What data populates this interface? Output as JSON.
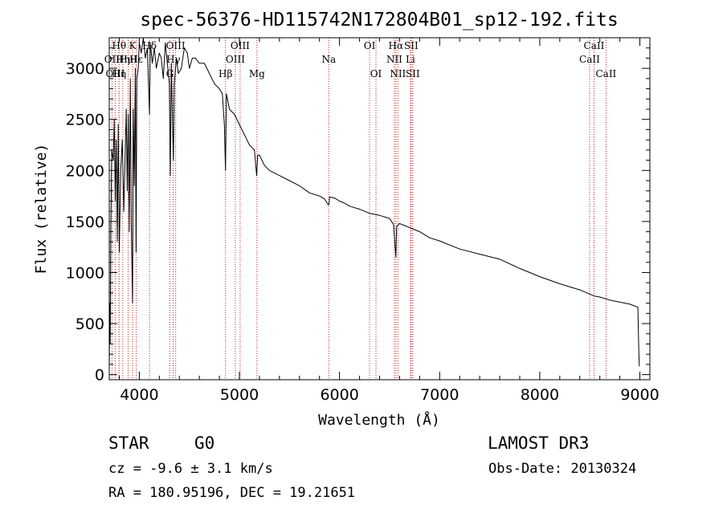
{
  "chart_data": {
    "type": "line",
    "title": "spec-56376-HD115742N172804B01_sp12-192.fits",
    "xlabel": "Wavelength (Å)",
    "ylabel": "Flux (relative)",
    "xlim": [
      3700,
      9100
    ],
    "ylim": [
      -50,
      3300
    ],
    "xticks": [
      4000,
      5000,
      6000,
      7000,
      8000,
      9000
    ],
    "yticks": [
      0,
      500,
      1000,
      1500,
      2000,
      2500,
      3000
    ],
    "xticklabels": [
      "4000",
      "5000",
      "6000",
      "7000",
      "8000",
      "9000"
    ],
    "yticklabels": [
      "0",
      "500",
      "1000",
      "1500",
      "2000",
      "2500",
      "3000"
    ],
    "spectrum": {
      "x": [
        3700,
        3705,
        3710,
        3715,
        3725,
        3740,
        3750,
        3760,
        3770,
        3780,
        3790,
        3800,
        3815,
        3830,
        3845,
        3860,
        3870,
        3880,
        3890,
        3900,
        3910,
        3920,
        3933,
        3940,
        3950,
        3960,
        3968,
        3975,
        3990,
        4000,
        4020,
        4040,
        4060,
        4080,
        4102,
        4110,
        4130,
        4150,
        4170,
        4200,
        4220,
        4240,
        4260,
        4280,
        4300,
        4310,
        4320,
        4330,
        4340,
        4350,
        4370,
        4390,
        4420,
        4450,
        4480,
        4500,
        4530,
        4560,
        4600,
        4650,
        4700,
        4750,
        4800,
        4830,
        4850,
        4861,
        4870,
        4880,
        4900,
        4950,
        5000,
        5050,
        5100,
        5150,
        5172,
        5183,
        5200,
        5250,
        5300,
        5400,
        5500,
        5600,
        5700,
        5800,
        5850,
        5890,
        5896,
        5900,
        5950,
        6000,
        6050,
        6100,
        6200,
        6300,
        6400,
        6500,
        6540,
        6563,
        6570,
        6600,
        6650,
        6700,
        6800,
        6900,
        7000,
        7200,
        7400,
        7600,
        7800,
        8000,
        8200,
        8400,
        8542,
        8600,
        8700,
        8800,
        8900,
        8980,
        8990,
        8995
      ],
      "y": [
        50,
        700,
        300,
        1400,
        2200,
        2100,
        2500,
        1700,
        2300,
        1300,
        2450,
        1200,
        2000,
        2300,
        1600,
        2200,
        2600,
        1800,
        2550,
        1400,
        2900,
        1500,
        700,
        2600,
        1850,
        3000,
        1200,
        2900,
        3000,
        3250,
        3150,
        3300,
        3100,
        3200,
        2550,
        3250,
        3050,
        3200,
        3000,
        3150,
        3100,
        2900,
        3250,
        3050,
        2850,
        1950,
        3050,
        2550,
        2100,
        2850,
        3100,
        2950,
        3000,
        3200,
        3150,
        3000,
        3100,
        3100,
        3050,
        3050,
        2950,
        2850,
        2800,
        2750,
        2450,
        2000,
        2750,
        2700,
        2600,
        2550,
        2450,
        2350,
        2250,
        2200,
        1950,
        2150,
        2150,
        2050,
        2000,
        1950,
        1900,
        1850,
        1780,
        1750,
        1720,
        1660,
        1680,
        1740,
        1730,
        1700,
        1680,
        1650,
        1620,
        1580,
        1560,
        1530,
        1470,
        1150,
        1450,
        1480,
        1460,
        1440,
        1400,
        1340,
        1310,
        1230,
        1180,
        1130,
        1040,
        960,
        890,
        830,
        770,
        760,
        730,
        710,
        690,
        660,
        200,
        80
      ]
    },
    "lines": [
      {
        "name": "Hθ",
        "wave": 3798,
        "row": 1
      },
      {
        "name": "OII",
        "wave": 3727,
        "row": 2
      },
      {
        "name": "Hη",
        "wave": 3835,
        "row": 2
      },
      {
        "name": "OIII",
        "wave": 3760,
        "row": 3
      },
      {
        "name": "Hη",
        "wave": 3798,
        "row": 3
      },
      {
        "name": "K",
        "wave": 3934,
        "row": 1
      },
      {
        "name": "HeI",
        "wave": 3889,
        "row": 2
      },
      {
        "name": "Hε",
        "wave": 3970,
        "row": 2
      },
      {
        "name": "Hδ",
        "wave": 4102,
        "row": 1
      },
      {
        "name": "OIII",
        "wave": 4363,
        "row": 1
      },
      {
        "name": "Hγ",
        "wave": 4340,
        "row": 2
      },
      {
        "name": "G",
        "wave": 4305,
        "row": 3
      },
      {
        "name": "Hβ",
        "wave": 4861,
        "row": 3
      },
      {
        "name": "OIII",
        "wave": 5007,
        "row": 1
      },
      {
        "name": "OIII",
        "wave": 4959,
        "row": 2
      },
      {
        "name": "Mg",
        "wave": 5175,
        "row": 3
      },
      {
        "name": "Na",
        "wave": 5893,
        "row": 2
      },
      {
        "name": "OI",
        "wave": 6300,
        "row": 1
      },
      {
        "name": "OI",
        "wave": 6364,
        "row": 3
      },
      {
        "name": "Hα",
        "wave": 6563,
        "row": 1
      },
      {
        "name": "SII",
        "wave": 6716,
        "row": 1
      },
      {
        "name": "NII",
        "wave": 6548,
        "row": 2
      },
      {
        "name": "Li",
        "wave": 6708,
        "row": 2
      },
      {
        "name": "NII",
        "wave": 6583,
        "row": 3
      },
      {
        "name": "SII",
        "wave": 6731,
        "row": 3
      },
      {
        "name": "CaII",
        "wave": 8542,
        "row": 1
      },
      {
        "name": "CaII",
        "wave": 8498,
        "row": 2
      },
      {
        "name": "CaII",
        "wave": 8662,
        "row": 3
      }
    ]
  },
  "info": {
    "class": "STAR",
    "subclass": "G0",
    "survey": "LAMOST DR3",
    "cz": "cz = -9.6 ± 3.1 km/s",
    "obs_date": "Obs-Date: 20130324",
    "coords": "RA = 180.95196, DEC =  19.21651"
  },
  "colors": {
    "spectrum": "#000000",
    "line_markers": "#cc2020",
    "axes": "#000000"
  }
}
